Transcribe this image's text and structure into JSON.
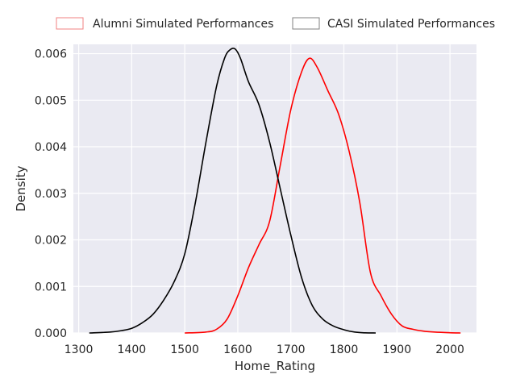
{
  "chart_data": {
    "type": "line",
    "title": "",
    "xlabel": "Home_Rating",
    "ylabel": "Density",
    "xlim": [
      1290,
      2050
    ],
    "ylim": [
      0,
      0.0062
    ],
    "xticks": [
      1300,
      1400,
      1500,
      1600,
      1700,
      1800,
      1900,
      2000
    ],
    "xtick_labels": [
      "1300",
      "1400",
      "1500",
      "1600",
      "1700",
      "1800",
      "1900",
      "2000"
    ],
    "yticks": [
      0,
      0.001,
      0.002,
      0.003,
      0.004,
      0.005,
      0.006
    ],
    "ytick_labels": [
      "0.000",
      "0.001",
      "0.002",
      "0.003",
      "0.004",
      "0.005",
      "0.006"
    ],
    "grid": true,
    "legend_position": "top, outside plot, horizontal",
    "series": [
      {
        "name": "Alumni Simulated Performances",
        "color": "#ff0000",
        "legend_edge_color": "#f08080",
        "x": [
          1500,
          1540,
          1560,
          1580,
          1600,
          1620,
          1640,
          1660,
          1680,
          1700,
          1720,
          1735,
          1750,
          1770,
          1790,
          1810,
          1830,
          1850,
          1870,
          1890,
          1910,
          1930,
          1950,
          1970,
          2000,
          2020
        ],
        "y": [
          0.0,
          2e-05,
          8e-05,
          0.0003,
          0.0008,
          0.0014,
          0.0019,
          0.0024,
          0.0036,
          0.0048,
          0.0056,
          0.0059,
          0.0057,
          0.0052,
          0.0047,
          0.0039,
          0.0028,
          0.0013,
          0.0008,
          0.0004,
          0.00015,
          8e-05,
          4e-05,
          2e-05,
          5e-06,
          0.0
        ]
      },
      {
        "name": "CASI Simulated Performances",
        "color": "#000000",
        "legend_edge_color": "#808080",
        "x": [
          1320,
          1360,
          1380,
          1400,
          1420,
          1440,
          1460,
          1480,
          1500,
          1520,
          1540,
          1560,
          1575,
          1585,
          1595,
          1605,
          1620,
          1640,
          1660,
          1680,
          1700,
          1720,
          1740,
          1760,
          1780,
          1800,
          1820,
          1840,
          1860
        ],
        "y": [
          0.0,
          2e-05,
          5e-05,
          0.0001,
          0.00022,
          0.0004,
          0.0007,
          0.0011,
          0.0017,
          0.0028,
          0.0041,
          0.0053,
          0.0059,
          0.00608,
          0.0061,
          0.0059,
          0.0054,
          0.0049,
          0.0041,
          0.0031,
          0.0021,
          0.0012,
          0.0006,
          0.0003,
          0.00015,
          7e-05,
          2e-05,
          3e-06,
          0.0
        ]
      }
    ]
  }
}
